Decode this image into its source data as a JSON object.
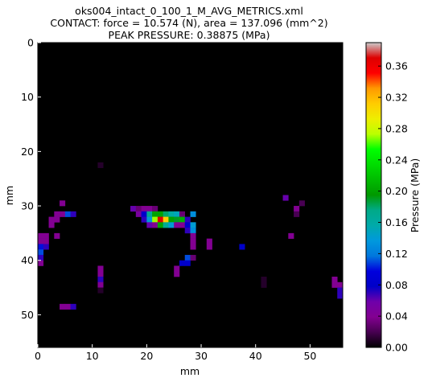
{
  "chart_data": {
    "type": "heatmap",
    "title_lines": [
      "oks004_intact_0_100_1_M_AVG_METRICS.xml",
      "CONTACT: force = 10.574 (N), area = 137.096 (mm^2)",
      "PEAK PRESSURE: 0.38875 (MPa)"
    ],
    "xlabel": "mm",
    "ylabel": "mm",
    "colorbar_label": "Pressure (MPa)",
    "colormap": "nipy_spectral",
    "xlim": [
      0,
      56
    ],
    "ylim": [
      0,
      56
    ],
    "y_inverted": true,
    "x_ticks": [
      0,
      10,
      20,
      30,
      40,
      50
    ],
    "y_ticks": [
      0,
      10,
      20,
      30,
      40,
      50
    ],
    "vmin": 0.0,
    "vmax": 0.39,
    "colorbar_ticks": [
      "0.00",
      "0.04",
      "0.08",
      "0.12",
      "0.16",
      "0.20",
      "0.24",
      "0.28",
      "0.32",
      "0.36"
    ],
    "background_value": 0.0,
    "cells": [
      [
        11,
        22,
        0.01
      ],
      [
        45,
        28,
        0.06
      ],
      [
        4,
        29,
        0.04
      ],
      [
        48,
        29,
        0.02
      ],
      [
        17,
        30,
        0.06
      ],
      [
        18,
        30,
        0.03
      ],
      [
        19,
        30,
        0.04
      ],
      [
        20,
        30,
        0.04
      ],
      [
        21,
        30,
        0.03
      ],
      [
        47,
        30,
        0.04
      ],
      [
        3,
        31,
        0.04
      ],
      [
        4,
        31,
        0.04
      ],
      [
        5,
        31,
        0.11
      ],
      [
        6,
        31,
        0.07
      ],
      [
        18,
        31,
        0.05
      ],
      [
        19,
        31,
        0.08
      ],
      [
        20,
        31,
        0.17
      ],
      [
        21,
        31,
        0.2
      ],
      [
        22,
        31,
        0.2
      ],
      [
        23,
        31,
        0.18
      ],
      [
        24,
        31,
        0.16
      ],
      [
        25,
        31,
        0.15
      ],
      [
        26,
        31,
        0.03
      ],
      [
        28,
        31,
        0.13
      ],
      [
        47,
        31,
        0.02
      ],
      [
        2,
        32,
        0.04
      ],
      [
        3,
        32,
        0.04
      ],
      [
        19,
        32,
        0.07
      ],
      [
        20,
        32,
        0.14
      ],
      [
        21,
        32,
        0.27
      ],
      [
        22,
        32,
        0.37
      ],
      [
        23,
        32,
        0.31
      ],
      [
        24,
        32,
        0.2
      ],
      [
        25,
        32,
        0.19
      ],
      [
        26,
        32,
        0.21
      ],
      [
        27,
        32,
        0.07
      ],
      [
        2,
        33,
        0.04
      ],
      [
        20,
        33,
        0.06
      ],
      [
        21,
        33,
        0.04
      ],
      [
        22,
        33,
        0.2
      ],
      [
        23,
        33,
        0.17
      ],
      [
        24,
        33,
        0.14
      ],
      [
        25,
        33,
        0.04
      ],
      [
        26,
        33,
        0.04
      ],
      [
        27,
        33,
        0.08
      ],
      [
        28,
        33,
        0.14
      ],
      [
        27,
        34,
        0.07
      ],
      [
        28,
        34,
        0.13
      ],
      [
        0,
        35,
        0.04
      ],
      [
        1,
        35,
        0.04
      ],
      [
        3,
        35,
        0.04
      ],
      [
        28,
        35,
        0.04
      ],
      [
        46,
        35,
        0.04
      ],
      [
        0,
        36,
        0.04
      ],
      [
        1,
        36,
        0.04
      ],
      [
        28,
        36,
        0.04
      ],
      [
        31,
        36,
        0.04
      ],
      [
        0,
        37,
        0.1
      ],
      [
        1,
        37,
        0.07
      ],
      [
        28,
        37,
        0.04
      ],
      [
        31,
        37,
        0.04
      ],
      [
        37,
        37,
        0.08
      ],
      [
        0,
        38,
        0.11
      ],
      [
        0,
        39,
        0.07
      ],
      [
        27,
        39,
        0.11
      ],
      [
        28,
        39,
        0.03
      ],
      [
        0,
        40,
        0.04
      ],
      [
        26,
        40,
        0.08
      ],
      [
        27,
        40,
        0.08
      ],
      [
        11,
        41,
        0.04
      ],
      [
        25,
        41,
        0.04
      ],
      [
        11,
        42,
        0.04
      ],
      [
        25,
        42,
        0.04
      ],
      [
        11,
        43,
        0.07
      ],
      [
        41,
        43,
        0.01
      ],
      [
        54,
        43,
        0.04
      ],
      [
        11,
        44,
        0.04
      ],
      [
        41,
        44,
        0.01
      ],
      [
        54,
        44,
        0.04
      ],
      [
        55,
        44,
        0.04
      ],
      [
        11,
        45,
        0.01
      ],
      [
        55,
        45,
        0.07
      ],
      [
        55,
        46,
        0.07
      ],
      [
        4,
        48,
        0.04
      ],
      [
        5,
        48,
        0.04
      ],
      [
        6,
        48,
        0.07
      ]
    ]
  }
}
